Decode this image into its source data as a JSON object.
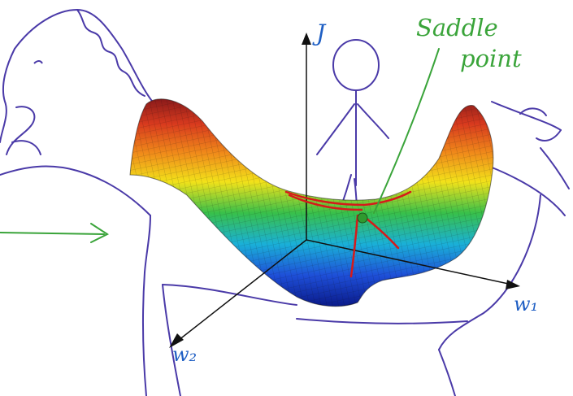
{
  "annotations": {
    "saddle_line1": "Saddle",
    "saddle_line2": "point",
    "axis_j": "J",
    "axis_w1": "w₁",
    "axis_w2": "w₂"
  },
  "colors": {
    "horse": "#4a3aa8",
    "annotation_green": "#3aa43a",
    "axes": "#111111",
    "axis_label_blue": "#1f5fc4",
    "saddle_marker": "#7a1a1a",
    "saddle_point_fill": "#2f9a2f"
  }
}
